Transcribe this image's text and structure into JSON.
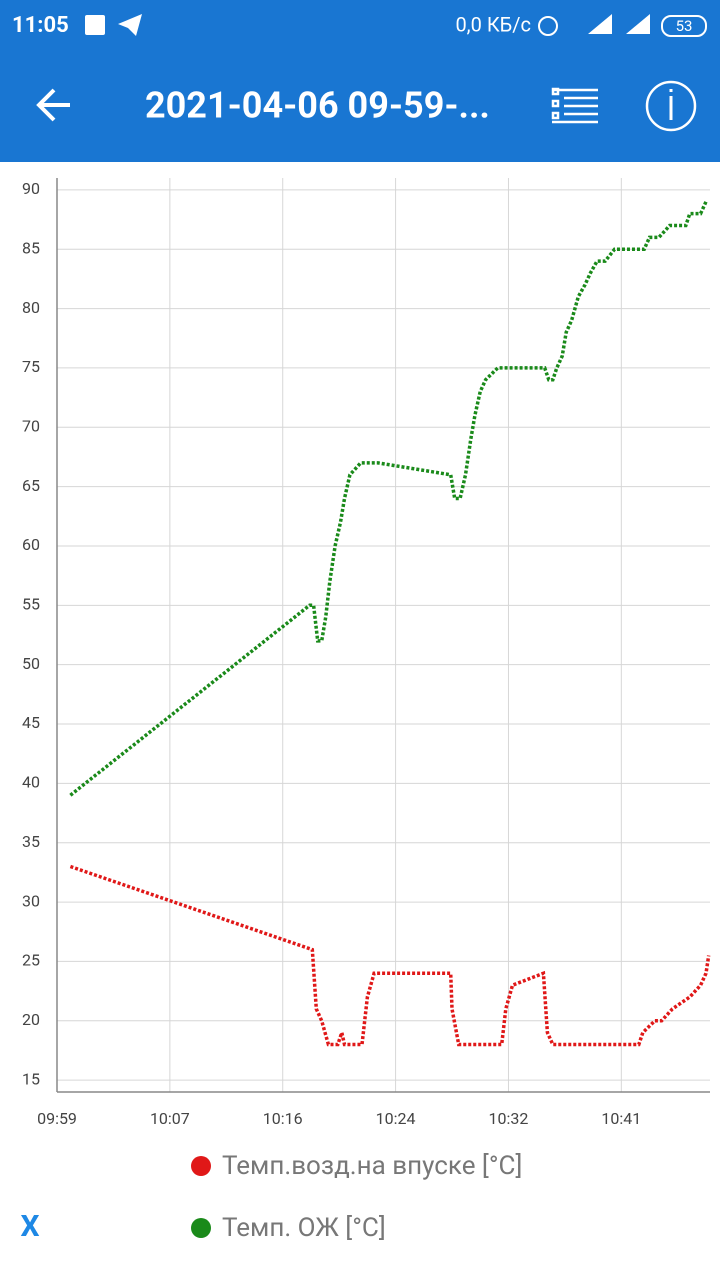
{
  "status_bar": {
    "time": "11:05",
    "speed": "0,0 КБ/с",
    "battery": "53"
  },
  "app_bar": {
    "title": "2021-04-06 09-59-..."
  },
  "chart_data": {
    "type": "line",
    "xlim": [
      599,
      647.6
    ],
    "ylim": [
      14,
      91
    ],
    "xticks": [
      {
        "value": 599,
        "label": "09:59"
      },
      {
        "value": 607.4,
        "label": "10:07"
      },
      {
        "value": 615.8,
        "label": "10:16"
      },
      {
        "value": 624.2,
        "label": "10:24"
      },
      {
        "value": 632.6,
        "label": "10:32"
      },
      {
        "value": 641,
        "label": "10:41"
      }
    ],
    "yticks": [
      15,
      20,
      25,
      30,
      35,
      40,
      45,
      50,
      55,
      60,
      65,
      70,
      75,
      80,
      85,
      90
    ],
    "grid": true,
    "legend": "bottom",
    "series": [
      {
        "name": "Темп.возд.на впуске [°C]",
        "color": "#e01818",
        "x": [
          600.0,
          618.0,
          618.3,
          618.7,
          619.2,
          619.9,
          620.2,
          620.4,
          621.7,
          622.1,
          622.6,
          628.3,
          628.4,
          628.9,
          632.1,
          632.4,
          632.9,
          635.2,
          635.5,
          635.9,
          642.3,
          642.6,
          643.5,
          644.0,
          644.8,
          646.1,
          646.9,
          647.3,
          647.5
        ],
        "values": [
          33,
          26,
          21,
          20,
          18,
          18,
          19,
          18,
          18,
          22,
          24,
          24,
          21,
          18,
          18,
          21,
          23,
          24,
          19,
          18,
          18,
          19,
          20,
          20,
          21,
          22,
          23,
          24,
          25.5
        ]
      },
      {
        "name": "Темп. ОЖ [°C]",
        "color": "#1a8a1a",
        "x": [
          600.0,
          617.8,
          618.1,
          618.4,
          618.7,
          619.0,
          619.3,
          619.7,
          620.1,
          620.4,
          620.8,
          621.6,
          622.9,
          628.3,
          628.6,
          629.0,
          629.4,
          629.8,
          630.1,
          630.5,
          630.9,
          631.8,
          635.3,
          635.6,
          635.9,
          636.2,
          636.6,
          636.9,
          637.3,
          637.8,
          638.3,
          638.7,
          639.2,
          639.8,
          640.5,
          642.7,
          643.1,
          643.8,
          644.6,
          645.8,
          646.1,
          646.9,
          647.3
        ],
        "values": [
          39,
          55,
          55,
          52,
          52,
          54,
          57,
          60,
          62,
          64,
          66,
          67,
          67,
          66,
          64,
          64,
          66,
          69,
          71,
          73,
          74,
          75,
          75,
          74,
          74,
          75,
          76,
          78,
          79,
          81,
          82,
          83,
          84,
          84,
          85,
          85,
          86,
          86,
          87,
          87,
          88,
          88,
          89
        ]
      }
    ]
  },
  "footer": {
    "button": "X"
  }
}
